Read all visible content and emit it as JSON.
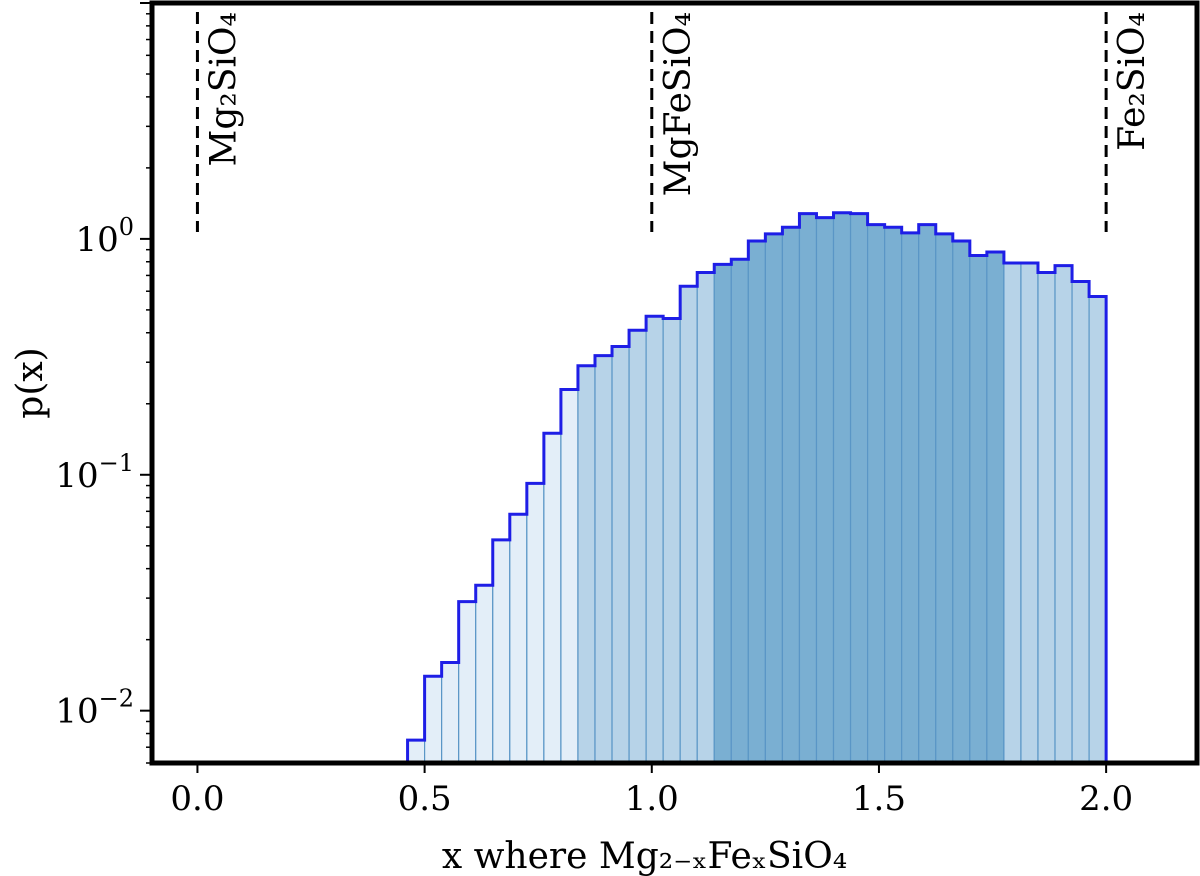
{
  "chart_data": {
    "type": "bar",
    "title": "",
    "xlabel": "x where Mg₂₋ₓFeₓSiO₄",
    "ylabel": "p(x)",
    "yscale": "log",
    "xlim": [
      -0.1,
      2.2
    ],
    "ylim": [
      0.006,
      10
    ],
    "grid": false,
    "legend": "none",
    "x_ticks": [
      {
        "value": 0.0,
        "label": "0.0"
      },
      {
        "value": 0.5,
        "label": "0.5"
      },
      {
        "value": 1.0,
        "label": "1.0"
      },
      {
        "value": 1.5,
        "label": "1.5"
      },
      {
        "value": 2.0,
        "label": "2.0"
      }
    ],
    "y_ticks": [
      {
        "value": 0.01,
        "base": "10",
        "exp": "−2"
      },
      {
        "value": 0.1,
        "base": "10",
        "exp": "−1"
      },
      {
        "value": 1,
        "base": "10",
        "exp": "0"
      }
    ],
    "reference_lines": [
      {
        "x": 0.0,
        "label": "Mg₂SiO₄"
      },
      {
        "x": 1.0,
        "label": "MgFeSiO₄"
      },
      {
        "x": 2.0,
        "label": "Fe₂SiO₄"
      }
    ],
    "bin_width": 0.0375,
    "bins_start": [
      0.4625,
      0.5,
      0.5375,
      0.575,
      0.6125,
      0.65,
      0.6875,
      0.725,
      0.7625,
      0.8,
      0.8375,
      0.875,
      0.9125,
      0.95,
      0.9875,
      1.025,
      1.0625,
      1.1,
      1.1375,
      1.175,
      1.2125,
      1.25,
      1.2875,
      1.325,
      1.3625,
      1.4,
      1.4375,
      1.475,
      1.5125,
      1.55,
      1.5875,
      1.625,
      1.6625,
      1.7,
      1.7375,
      1.775,
      1.8125,
      1.85,
      1.8875,
      1.925,
      1.9625
    ],
    "values": [
      0.0075,
      0.014,
      0.016,
      0.029,
      0.034,
      0.053,
      0.068,
      0.092,
      0.15,
      0.23,
      0.29,
      0.32,
      0.35,
      0.41,
      0.47,
      0.46,
      0.63,
      0.72,
      0.78,
      0.82,
      0.98,
      1.05,
      1.12,
      1.28,
      1.23,
      1.29,
      1.28,
      1.15,
      1.12,
      1.06,
      1.15,
      1.05,
      0.98,
      0.85,
      0.88,
      0.79,
      0.79,
      0.72,
      0.77,
      0.66,
      0.57
    ],
    "colors": {
      "outline": "#1e1ee6",
      "reference_line": "#000000",
      "bar_light": "#e3eef8",
      "bar_mid": "#b7d3e8",
      "bar_dark": "#7aafd2",
      "bar_edge": "#5a96c6"
    },
    "shade_bands": [
      {
        "from": 0.4625,
        "to": 0.8375,
        "shade": "light"
      },
      {
        "from": 0.8375,
        "to": 1.1375,
        "shade": "mid"
      },
      {
        "from": 1.1375,
        "to": 1.775,
        "shade": "dark"
      },
      {
        "from": 1.775,
        "to": 2.0,
        "shade": "mid"
      }
    ]
  }
}
